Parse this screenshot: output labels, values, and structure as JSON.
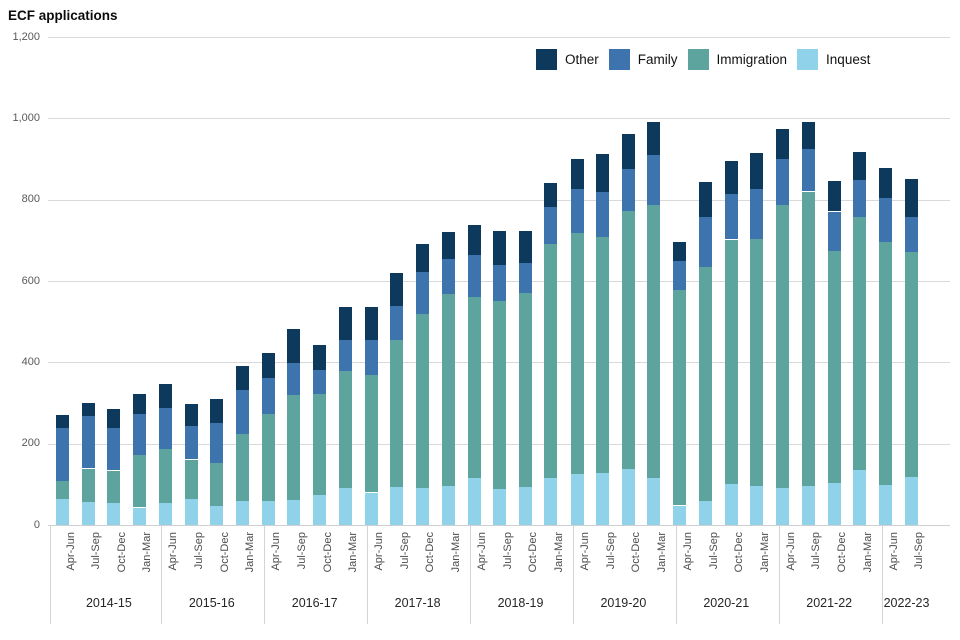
{
  "title": "ECF applications",
  "chart_data": {
    "type": "bar",
    "stacked": true,
    "title": "ECF applications",
    "grid": true,
    "legend_position": "top-right",
    "legend_order": [
      "Other",
      "Family",
      "Immigration",
      "Inquest"
    ],
    "stack_order_bottom_to_top": [
      "Inquest",
      "Immigration",
      "Family",
      "Other"
    ],
    "colors": {
      "Other": "#0d3a5c",
      "Family": "#3d74ae",
      "Immigration": "#5da49f",
      "Inquest": "#8fd2ea"
    },
    "ylim": [
      0,
      1200
    ],
    "y_ticks": [
      0,
      200,
      400,
      600,
      800,
      1000,
      1200
    ],
    "y_tick_labels": [
      "0",
      "200",
      "400",
      "600",
      "800",
      "1,000",
      "1,200"
    ],
    "quarter_labels": [
      "Apr-Jun",
      "Jul-Sep",
      "Oct-Dec",
      "Jan-Mar"
    ],
    "groups": [
      {
        "year": "2014-15",
        "bars": [
          {
            "quarter": "Apr-Jun",
            "values": {
              "Inquest": 64,
              "Immigration": 45,
              "Family": 130,
              "Other": 31
            }
          },
          {
            "quarter": "Jul-Sep",
            "values": {
              "Inquest": 56,
              "Immigration": 83,
              "Family": 130,
              "Other": 31
            }
          },
          {
            "quarter": "Oct-Dec",
            "values": {
              "Inquest": 54,
              "Immigration": 80,
              "Family": 104,
              "Other": 47
            }
          },
          {
            "quarter": "Jan-Mar",
            "values": {
              "Inquest": 43,
              "Immigration": 130,
              "Family": 100,
              "Other": 50
            }
          }
        ]
      },
      {
        "year": "2015-16",
        "bars": [
          {
            "quarter": "Apr-Jun",
            "values": {
              "Inquest": 55,
              "Immigration": 133,
              "Family": 100,
              "Other": 60
            }
          },
          {
            "quarter": "Jul-Sep",
            "values": {
              "Inquest": 63,
              "Immigration": 98,
              "Family": 82,
              "Other": 55
            }
          },
          {
            "quarter": "Oct-Dec",
            "values": {
              "Inquest": 47,
              "Immigration": 106,
              "Family": 98,
              "Other": 58
            }
          },
          {
            "quarter": "Jan-Mar",
            "values": {
              "Inquest": 58,
              "Immigration": 165,
              "Family": 110,
              "Other": 57
            }
          }
        ]
      },
      {
        "year": "2016-17",
        "bars": [
          {
            "quarter": "Apr-Jun",
            "values": {
              "Inquest": 59,
              "Immigration": 214,
              "Family": 88,
              "Other": 62
            }
          },
          {
            "quarter": "Jul-Sep",
            "values": {
              "Inquest": 61,
              "Immigration": 258,
              "Family": 80,
              "Other": 82
            }
          },
          {
            "quarter": "Oct-Dec",
            "values": {
              "Inquest": 73,
              "Immigration": 250,
              "Family": 59,
              "Other": 61
            }
          },
          {
            "quarter": "Jan-Mar",
            "values": {
              "Inquest": 92,
              "Immigration": 286,
              "Family": 78,
              "Other": 80
            }
          }
        ]
      },
      {
        "year": "2017-18",
        "bars": [
          {
            "quarter": "Apr-Jun",
            "values": {
              "Inquest": 80,
              "Immigration": 288,
              "Family": 88,
              "Other": 80
            }
          },
          {
            "quarter": "Jul-Sep",
            "values": {
              "Inquest": 93,
              "Immigration": 362,
              "Family": 84,
              "Other": 82
            }
          },
          {
            "quarter": "Oct-Dec",
            "values": {
              "Inquest": 90,
              "Immigration": 428,
              "Family": 104,
              "Other": 68
            }
          },
          {
            "quarter": "Jan-Mar",
            "values": {
              "Inquest": 96,
              "Immigration": 471,
              "Family": 86,
              "Other": 67
            }
          }
        ]
      },
      {
        "year": "2018-19",
        "bars": [
          {
            "quarter": "Apr-Jun",
            "values": {
              "Inquest": 115,
              "Immigration": 445,
              "Family": 105,
              "Other": 72
            }
          },
          {
            "quarter": "Jul-Sep",
            "values": {
              "Inquest": 89,
              "Immigration": 461,
              "Family": 89,
              "Other": 85
            }
          },
          {
            "quarter": "Oct-Dec",
            "values": {
              "Inquest": 94,
              "Immigration": 477,
              "Family": 74,
              "Other": 78
            }
          },
          {
            "quarter": "Jan-Mar",
            "values": {
              "Inquest": 115,
              "Immigration": 577,
              "Family": 91,
              "Other": 57
            }
          }
        ]
      },
      {
        "year": "2019-20",
        "bars": [
          {
            "quarter": "Apr-Jun",
            "values": {
              "Inquest": 125,
              "Immigration": 592,
              "Family": 110,
              "Other": 72
            }
          },
          {
            "quarter": "Jul-Sep",
            "values": {
              "Inquest": 128,
              "Immigration": 581,
              "Family": 109,
              "Other": 94
            }
          },
          {
            "quarter": "Oct-Dec",
            "values": {
              "Inquest": 138,
              "Immigration": 634,
              "Family": 103,
              "Other": 86
            }
          },
          {
            "quarter": "Jan-Mar",
            "values": {
              "Inquest": 116,
              "Immigration": 671,
              "Family": 124,
              "Other": 80
            }
          }
        ]
      },
      {
        "year": "2020-21",
        "bars": [
          {
            "quarter": "Apr-Jun",
            "values": {
              "Inquest": 48,
              "Immigration": 529,
              "Family": 72,
              "Other": 48
            }
          },
          {
            "quarter": "Jul-Sep",
            "values": {
              "Inquest": 58,
              "Immigration": 576,
              "Family": 123,
              "Other": 86
            }
          },
          {
            "quarter": "Oct-Dec",
            "values": {
              "Inquest": 102,
              "Immigration": 600,
              "Family": 111,
              "Other": 82
            }
          },
          {
            "quarter": "Jan-Mar",
            "values": {
              "Inquest": 95,
              "Immigration": 609,
              "Family": 122,
              "Other": 88
            }
          }
        ]
      },
      {
        "year": "2021-22",
        "bars": [
          {
            "quarter": "Apr-Jun",
            "values": {
              "Inquest": 92,
              "Immigration": 695,
              "Family": 112,
              "Other": 76
            }
          },
          {
            "quarter": "Jul-Sep",
            "values": {
              "Inquest": 95,
              "Immigration": 725,
              "Family": 105,
              "Other": 67
            }
          },
          {
            "quarter": "Oct-Dec",
            "values": {
              "Inquest": 103,
              "Immigration": 570,
              "Family": 98,
              "Other": 76
            }
          },
          {
            "quarter": "Jan-Mar",
            "values": {
              "Inquest": 136,
              "Immigration": 622,
              "Family": 90,
              "Other": 70
            }
          }
        ]
      },
      {
        "year": "2022-23",
        "bars": [
          {
            "quarter": "Apr-Jun",
            "values": {
              "Inquest": 98,
              "Immigration": 597,
              "Family": 109,
              "Other": 75
            }
          },
          {
            "quarter": "Jul-Sep",
            "values": {
              "Inquest": 118,
              "Immigration": 554,
              "Family": 85,
              "Other": 95
            }
          }
        ]
      }
    ]
  }
}
